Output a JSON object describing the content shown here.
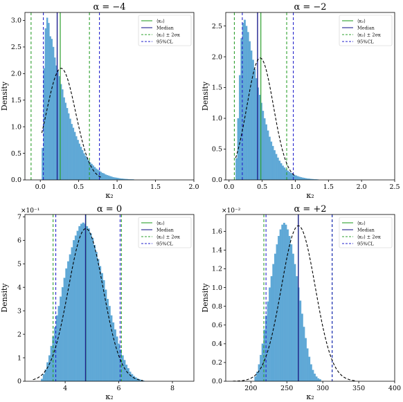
{
  "figure": {
    "panels_layout": "2x2 grid"
  },
  "chart_data": [
    {
      "type": "histogram",
      "title": "α = −4",
      "xlabel": "κ₂",
      "ylabel": "Density",
      "xlim": [
        -0.2,
        2.0
      ],
      "ylim": [
        0,
        3.15
      ],
      "xticks": [
        0.0,
        0.5,
        1.0,
        1.5,
        2.0
      ],
      "xtick_labels": [
        "0.0",
        "0.5",
        "1.0",
        "1.5",
        "2.0"
      ],
      "yticks": [
        0.0,
        0.5,
        1.0,
        1.5,
        2.0,
        2.5,
        3.0
      ],
      "ytick_labels": [
        "0.0",
        "0.5",
        "1.0",
        "1.5",
        "2.0",
        "2.5",
        "3.0"
      ],
      "y_multiplier": "",
      "bin_width": 0.02,
      "bin_start": 0.02,
      "histogram_values": [
        0.6,
        2.1,
        2.85,
        3.05,
        2.95,
        2.7,
        2.65,
        2.5,
        2.3,
        2.15,
        2.05,
        1.95,
        1.8,
        1.7,
        1.55,
        1.45,
        1.35,
        1.25,
        1.15,
        1.05,
        0.98,
        0.9,
        0.82,
        0.75,
        0.68,
        0.62,
        0.56,
        0.5,
        0.45,
        0.41,
        0.37,
        0.33,
        0.3,
        0.27,
        0.24,
        0.21,
        0.19,
        0.17,
        0.15,
        0.13,
        0.12,
        0.1,
        0.09,
        0.08,
        0.07,
        0.06,
        0.05,
        0.045,
        0.04,
        0.035,
        0.03,
        0.025,
        0.022,
        0.019,
        0.016,
        0.014,
        0.012,
        0.01,
        0.009,
        0.008
      ],
      "gaussian": {
        "mean": 0.27,
        "sigma": 0.19,
        "peak": 2.1,
        "x_range": [
          0.02,
          0.8
        ]
      },
      "lines": {
        "mean": 0.26,
        "median": 0.22,
        "mean_pm_2sigma": [
          -0.12,
          0.64
        ],
        "ci95": [
          0.04,
          0.77
        ]
      },
      "legend": [
        "⟨κ₂⟩",
        "Median",
        "⟨κ₂⟩ ± 2σκ",
        "95%CL"
      ]
    },
    {
      "type": "histogram",
      "title": "α = −2",
      "xlabel": "κ₂",
      "ylabel": "Density",
      "xlim": [
        -0.05,
        2.5
      ],
      "ylim": [
        0,
        2.72
      ],
      "xticks": [
        0.0,
        0.5,
        1.0,
        1.5,
        2.0,
        2.5
      ],
      "xtick_labels": [
        "0.0",
        "0.5",
        "1.0",
        "1.5",
        "2.0",
        "2.5"
      ],
      "yticks": [
        0.0,
        0.5,
        1.0,
        1.5,
        2.0,
        2.5
      ],
      "ytick_labels": [
        "0.0",
        "0.5",
        "1.0",
        "1.5",
        "2.0",
        "2.5"
      ],
      "y_multiplier": "",
      "bin_width": 0.025,
      "bin_start": 0.1,
      "histogram_values": [
        0.35,
        1.0,
        1.7,
        2.3,
        2.55,
        2.6,
        2.5,
        2.4,
        2.25,
        2.1,
        1.95,
        1.8,
        1.65,
        1.5,
        1.38,
        1.25,
        1.12,
        1.0,
        0.9,
        0.8,
        0.7,
        0.62,
        0.55,
        0.48,
        0.42,
        0.36,
        0.31,
        0.27,
        0.23,
        0.2,
        0.17,
        0.15,
        0.13,
        0.11,
        0.095,
        0.08,
        0.07,
        0.06,
        0.05,
        0.042,
        0.035,
        0.03,
        0.025,
        0.021,
        0.018,
        0.015,
        0.012,
        0.01,
        0.008,
        0.006
      ],
      "gaussian": {
        "mean": 0.47,
        "sigma": 0.2,
        "peak": 1.98,
        "x_range": [
          0.1,
          1.0
        ]
      },
      "lines": {
        "mean": 0.48,
        "median": 0.43,
        "mean_pm_2sigma": [
          0.08,
          0.87
        ],
        "ci95": [
          0.2,
          0.97
        ]
      },
      "legend": [
        "⟨κ₂⟩",
        "Median",
        "⟨κ₂⟩ ± 2σκ",
        "95%CL"
      ]
    },
    {
      "type": "histogram",
      "title": "α = 0",
      "xlabel": "κ₂",
      "ylabel": "Density",
      "xlim": [
        2.5,
        8.8
      ],
      "ylim": [
        0,
        7.1
      ],
      "xticks": [
        4,
        6,
        8
      ],
      "xtick_labels": [
        "4",
        "6",
        "8"
      ],
      "yticks": [
        0,
        1,
        2,
        3,
        4,
        5,
        6,
        7
      ],
      "ytick_labels": [
        "0",
        "1",
        "2",
        "3",
        "4",
        "5",
        "6",
        "7"
      ],
      "y_multiplier": "×10⁻¹",
      "bin_width": 0.07,
      "bin_start": 3.1,
      "histogram_values": [
        0.1,
        0.3,
        0.5,
        0.8,
        1.1,
        1.5,
        1.9,
        2.3,
        2.8,
        3.2,
        3.6,
        4.0,
        4.4,
        4.8,
        5.1,
        5.4,
        5.7,
        6.0,
        6.2,
        6.4,
        6.6,
        6.7,
        6.75,
        6.7,
        6.6,
        6.5,
        6.3,
        6.1,
        5.8,
        5.5,
        5.2,
        4.9,
        4.6,
        4.3,
        3.9,
        3.5,
        3.2,
        2.8,
        2.5,
        2.2,
        1.9,
        1.6,
        1.35,
        1.1,
        0.9,
        0.7,
        0.55,
        0.4,
        0.3,
        0.22,
        0.16,
        0.11,
        0.08,
        0.05,
        0.03
      ],
      "gaussian": {
        "mean": 4.77,
        "sigma": 0.65,
        "peak": 6.5,
        "x_range": [
          2.8,
          6.9
        ]
      },
      "lines": {
        "mean": 4.77,
        "median": 4.76,
        "mean_pm_2sigma": [
          3.55,
          6.1
        ],
        "ci95": [
          3.65,
          6.05
        ]
      },
      "legend": [
        "⟨κ₂⟩",
        "Median",
        "⟨κ₂⟩ ± 2σκ",
        "95%CL"
      ]
    },
    {
      "type": "histogram",
      "title": "α = +2",
      "xlabel": "κ₂",
      "ylabel": "Density",
      "xlim": [
        165,
        400
      ],
      "ylim": [
        0,
        1.78
      ],
      "xticks": [
        200,
        250,
        300,
        350,
        400
      ],
      "xtick_labels": [
        "200",
        "250",
        "300",
        "350",
        "400"
      ],
      "yticks": [
        0.0,
        0.2,
        0.4,
        0.6,
        0.8,
        1.0,
        1.2,
        1.4,
        1.6
      ],
      "ytick_labels": [
        "0.0",
        "0.2",
        "0.4",
        "0.6",
        "0.8",
        "1.0",
        "1.2",
        "1.4",
        "1.6"
      ],
      "y_multiplier": "×10⁻²",
      "bin_width": 2.5,
      "bin_start": 205,
      "histogram_values": [
        0.05,
        0.1,
        0.18,
        0.28,
        0.4,
        0.55,
        0.7,
        0.85,
        1.0,
        1.12,
        1.25,
        1.36,
        1.46,
        1.55,
        1.62,
        1.67,
        1.69,
        1.67,
        1.62,
        1.55,
        1.46,
        1.36,
        1.25,
        1.12,
        1.0,
        0.86,
        0.72,
        0.58,
        0.46,
        0.35,
        0.26,
        0.18,
        0.12,
        0.08,
        0.05,
        0.03,
        0.02
      ],
      "gaussian": {
        "mean": 266,
        "sigma": 23.5,
        "peak": 1.66,
        "x_range": [
          175,
          345
        ]
      },
      "lines": {
        "mean": 266,
        "median": 266,
        "mean_pm_2sigma": [
          218,
          313
        ],
        "ci95": [
          221,
          313
        ]
      },
      "legend": [
        "⟨κ₂⟩",
        "Median",
        "⟨κ₂⟩ ± 2σκ",
        "95%CL"
      ]
    }
  ],
  "colors": {
    "hist_fill": "#5fa8d6",
    "mean_line": "#2ca02c",
    "median_line": "#1f1f8f",
    "sigma_line": "#2ca02c",
    "ci_line": "#2222cc",
    "gaussian": "#000000"
  }
}
